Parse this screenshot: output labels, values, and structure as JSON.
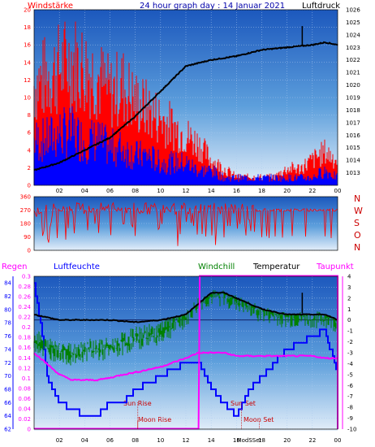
{
  "header": {
    "left_label": "Windstärke",
    "title": "24 hour graph day : 14 Januar 2021",
    "right_label": "Luftdruck"
  },
  "legend": {
    "regen": "Regen",
    "luftfeuchte": "Luftfeuchte",
    "windchill": "Windchill",
    "temperatur": "Temperatur",
    "taupunkt": "Taupunkt"
  },
  "annotations": {
    "sun_rise": "Sun Rise",
    "sun_set": "Sun Set",
    "moon_rise": "Moon Rise",
    "moon_set": "Moon Set",
    "mod_set": "ModSSet"
  },
  "colors": {
    "wind_red": "#ff0000",
    "wind_blue": "#0000ff",
    "pressure": "#000000",
    "humidity": "#0000ff",
    "windchill": "#008000",
    "temperature": "#000000",
    "dewpoint": "#ff00ff",
    "rain": "#ff00ff",
    "bg_top": "#1f5fbf",
    "bg_bottom": "#dfeaf7"
  },
  "chart_data": [
    {
      "type": "line",
      "name": "wind_pressure",
      "x_ticks": [
        "02",
        "04",
        "06",
        "08",
        "10",
        "12",
        "14",
        "16",
        "18",
        "20",
        "22",
        "00"
      ],
      "y_left_ticks": [
        "0",
        "2",
        "4",
        "6",
        "8",
        "10",
        "12",
        "14",
        "16",
        "18",
        "20"
      ],
      "y_right_ticks": [
        "1013",
        "1014",
        "1015",
        "1016",
        "1017",
        "1018",
        "1019",
        "1020",
        "1021",
        "1022",
        "1023",
        "1024",
        "1025",
        "1026"
      ],
      "ylim_left": [
        0,
        20
      ],
      "ylim_right": [
        1012,
        1026
      ],
      "xlim_hours": [
        0,
        24
      ],
      "series": [
        {
          "values_left": {
            "hours": [
              0,
              1,
              2,
              3,
              4,
              5,
              6,
              7,
              8,
              9,
              10,
              11,
              12,
              13,
              14,
              15,
              16,
              17,
              18,
              19,
              20,
              21,
              22,
              23,
              24
            ],
            "gust": [
              12,
              13,
              14,
              15,
              14,
              13,
              11,
              12,
              10,
              9,
              8,
              7,
              6,
              5,
              3,
              2,
              1,
              1,
              1,
              1,
              2,
              2,
              3,
              4,
              3
            ],
            "avg": [
              6,
              6,
              7,
              7,
              6,
              6,
              5,
              5,
              4,
              4,
              3,
              3,
              3,
              2,
              2,
              1,
              1,
              1,
              1,
              1,
              1,
              1,
              1,
              2,
              1
            ]
          }
        },
        {
          "values_right": {
            "hours": [
              0,
              2,
              4,
              6,
              8,
              10,
              12,
              14,
              16,
              18,
              20,
              21,
              22,
              23,
              24
            ],
            "pressure": [
              1013.2,
              1013.8,
              1014.8,
              1015.8,
              1017.5,
              1019.5,
              1021.5,
              1022.0,
              1022.3,
              1022.8,
              1023.0,
              1023.1,
              1023.2,
              1023.4,
              1023.2
            ]
          }
        }
      ]
    },
    {
      "type": "line",
      "name": "wind_direction",
      "x_ticks": [],
      "y_ticks": [
        "360",
        "270",
        "180",
        "90",
        "0"
      ],
      "direction_labels": [
        "N",
        "W",
        "S",
        "O",
        "N"
      ],
      "ylim": [
        0,
        360
      ]
    },
    {
      "type": "line",
      "name": "temperature_humidity",
      "x_ticks": [
        "02",
        "04",
        "06",
        "08",
        "10",
        "12",
        "14",
        "16",
        "18",
        "20",
        "22",
        "00"
      ],
      "humidity_ticks": [
        "62",
        "64",
        "66",
        "68",
        "70",
        "72",
        "74",
        "76",
        "78",
        "80",
        "82",
        "84"
      ],
      "rain_ticks": [
        "0",
        "0.02",
        "0.04",
        "0.06",
        "0.08",
        "0.1",
        "0.12",
        "0.14",
        "0.16",
        "0.18",
        "0.2",
        "0.22",
        "0.24",
        "0.26",
        "0.28",
        "0.3"
      ],
      "temp_ticks": [
        "4",
        "3",
        "2",
        "1",
        "0",
        "-1",
        "-2",
        "-3",
        "-4",
        "-5",
        "-6",
        "-7",
        "-8",
        "-9",
        "-10"
      ],
      "temp_lim": [
        -10,
        4
      ],
      "hum_lim": [
        62,
        85
      ],
      "series": [
        {
          "name": "Temperatur",
          "hours": [
            0,
            2,
            4,
            6,
            8,
            10,
            12,
            13,
            14,
            15,
            16,
            18,
            20,
            21,
            22,
            23,
            24
          ],
          "values": [
            0.5,
            0,
            0,
            0,
            -0.2,
            0,
            0.5,
            1.5,
            2.5,
            2.5,
            2,
            1,
            0.5,
            0.5,
            0.5,
            0.5,
            0
          ]
        },
        {
          "name": "Windchill",
          "hours": [
            0,
            1,
            2,
            3,
            4,
            6,
            8,
            10,
            12,
            13,
            14,
            15,
            16,
            18,
            20,
            22,
            23,
            24
          ],
          "values": [
            -2,
            -3,
            -3,
            -3.5,
            -3,
            -3,
            -2,
            -1.5,
            0,
            1.5,
            2,
            2,
            1.5,
            0.5,
            0,
            0,
            0,
            -0.5
          ]
        },
        {
          "name": "Taupunkt",
          "hours": [
            0,
            1,
            2,
            3,
            4,
            5,
            6,
            7,
            8,
            10,
            12,
            13,
            14,
            15,
            16,
            18,
            20,
            22,
            23,
            24
          ],
          "values": [
            -3,
            -4,
            -5,
            -5.5,
            -5.5,
            -5.5,
            -5.3,
            -5,
            -4.8,
            -4.3,
            -3.5,
            -3,
            -3,
            -3,
            -3.3,
            -3.3,
            -3.3,
            -3.3,
            -3.5,
            -3.5
          ]
        },
        {
          "name": "Luftfeuchte",
          "hours": [
            0,
            0.5,
            1,
            2,
            3,
            4,
            5,
            6,
            7,
            8,
            9,
            10,
            11,
            12,
            13,
            14,
            15,
            16,
            17,
            18,
            19,
            20,
            21,
            22,
            23,
            23.7,
            24
          ],
          "values": [
            84,
            78,
            70,
            66,
            65,
            64,
            64,
            66,
            66,
            68,
            69,
            70,
            71,
            72,
            72,
            68,
            66,
            64,
            68,
            70,
            72,
            74,
            75,
            76,
            77,
            72,
            70
          ]
        },
        {
          "name": "Regen",
          "hours": [
            0,
            13,
            13.1,
            24
          ],
          "values": [
            0,
            0,
            0.3,
            0.3
          ]
        }
      ]
    }
  ]
}
